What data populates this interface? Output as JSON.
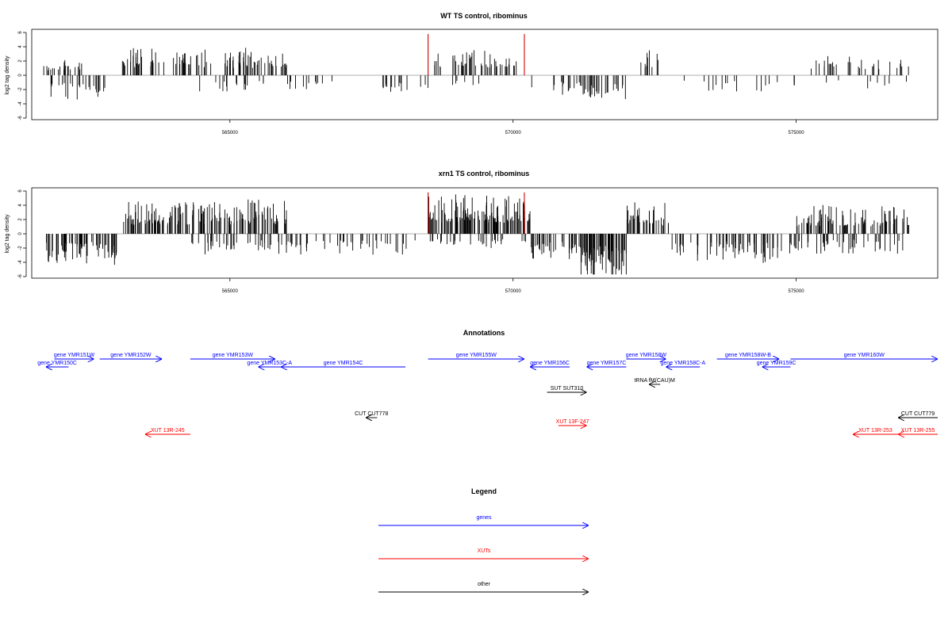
{
  "chart_data": [
    {
      "type": "bar",
      "title": "WT TS control, ribominus",
      "ylabel": "log2 tag density",
      "ylim": [
        -6,
        6
      ],
      "xlim": [
        561500,
        577500
      ],
      "yticks": [
        -6,
        -4,
        -2,
        0,
        2,
        4,
        6
      ],
      "xticks": [
        565000,
        570000,
        575000
      ],
      "series": [
        {
          "color": "#000000",
          "segments": [
            {
              "from": 561700,
              "to": 562400,
              "count": 24,
              "sign": 1,
              "amp": 1.0
            },
            {
              "from": 561800,
              "to": 562800,
              "count": 26,
              "sign": -1,
              "amp": 1.8
            },
            {
              "from": 563100,
              "to": 564700,
              "count": 55,
              "sign": 1,
              "amp": 2.0
            },
            {
              "from": 564400,
              "to": 565600,
              "count": 16,
              "sign": -1,
              "amp": 1.4
            },
            {
              "from": 564900,
              "to": 566000,
              "count": 48,
              "sign": 1,
              "amp": 1.9
            },
            {
              "from": 565700,
              "to": 566900,
              "count": 12,
              "sign": -1,
              "amp": 1.0
            },
            {
              "from": 567700,
              "to": 568500,
              "count": 16,
              "sign": -1,
              "amp": 1.4
            },
            {
              "from": 568600,
              "to": 570100,
              "count": 50,
              "sign": 1,
              "amp": 1.8
            },
            {
              "from": 568900,
              "to": 569400,
              "count": 6,
              "sign": -1,
              "amp": 0.8
            },
            {
              "from": 570300,
              "to": 571200,
              "count": 14,
              "sign": -1,
              "amp": 1.4
            },
            {
              "from": 571200,
              "to": 572000,
              "count": 30,
              "sign": -1,
              "amp": 2.3
            },
            {
              "from": 572200,
              "to": 572700,
              "count": 10,
              "sign": 1,
              "amp": 2.0
            },
            {
              "from": 572700,
              "to": 575000,
              "count": 18,
              "sign": -1,
              "amp": 1.1
            },
            {
              "from": 575100,
              "to": 577000,
              "count": 30,
              "sign": 1,
              "amp": 1.5
            },
            {
              "from": 575500,
              "to": 577000,
              "count": 8,
              "sign": -1,
              "amp": 0.9
            }
          ]
        },
        {
          "color": "#cc0000",
          "bars": [
            {
              "x": 568500,
              "y": 5.8
            },
            {
              "x": 570200,
              "y": 5.8
            }
          ]
        }
      ]
    },
    {
      "type": "bar",
      "title": "xrn1 TS control, ribominus",
      "ylabel": "log2 tag density",
      "ylim": [
        -6,
        6
      ],
      "xlim": [
        561500,
        577500
      ],
      "yticks": [
        -6,
        -4,
        -2,
        0,
        2,
        4,
        6
      ],
      "xticks": [
        565000,
        570000,
        575000
      ],
      "series": [
        {
          "color": "#000000",
          "segments": [
            {
              "from": 561700,
              "to": 563000,
              "count": 70,
              "sign": -1,
              "amp": 2.2
            },
            {
              "from": 563100,
              "to": 564300,
              "count": 70,
              "sign": 1,
              "amp": 2.4
            },
            {
              "from": 564300,
              "to": 566000,
              "count": 90,
              "sign": 1,
              "amp": 2.6
            },
            {
              "from": 564300,
              "to": 566000,
              "count": 40,
              "sign": -1,
              "amp": 1.6
            },
            {
              "from": 566000,
              "to": 568300,
              "count": 45,
              "sign": -1,
              "amp": 1.5
            },
            {
              "from": 568500,
              "to": 570300,
              "count": 130,
              "sign": 1,
              "amp": 2.8
            },
            {
              "from": 568500,
              "to": 570300,
              "count": 30,
              "sign": -1,
              "amp": 1.2
            },
            {
              "from": 570300,
              "to": 571200,
              "count": 40,
              "sign": -1,
              "amp": 2.0
            },
            {
              "from": 571200,
              "to": 572000,
              "count": 80,
              "sign": -1,
              "amp": 3.5
            },
            {
              "from": 572000,
              "to": 572800,
              "count": 40,
              "sign": 1,
              "amp": 2.4
            },
            {
              "from": 572800,
              "to": 575000,
              "count": 70,
              "sign": -1,
              "amp": 2.2
            },
            {
              "from": 575000,
              "to": 577000,
              "count": 90,
              "sign": 1,
              "amp": 2.0
            },
            {
              "from": 575000,
              "to": 577000,
              "count": 40,
              "sign": -1,
              "amp": 1.4
            }
          ]
        },
        {
          "color": "#cc0000",
          "bars": [
            {
              "x": 568500,
              "y": 5.8
            },
            {
              "x": 570200,
              "y": 5.8
            }
          ]
        }
      ]
    }
  ],
  "annotations": {
    "title": "Annotations",
    "features": [
      {
        "label": "gene YMR150C",
        "category": "genes",
        "strand": "-",
        "start": 561750,
        "end": 562150,
        "row": 2
      },
      {
        "label": "gene YMR151W",
        "category": "genes",
        "strand": "+",
        "start": 561900,
        "end": 562600,
        "row": 1
      },
      {
        "label": "gene YMR152W",
        "category": "genes",
        "strand": "+",
        "start": 562700,
        "end": 563800,
        "row": 1
      },
      {
        "label": "gene YMR153W",
        "category": "genes",
        "strand": "+",
        "start": 564300,
        "end": 565800,
        "row": 1
      },
      {
        "label": "gene YMR153C-A",
        "category": "genes",
        "strand": "-",
        "start": 565500,
        "end": 565900,
        "row": 2
      },
      {
        "label": "gene YMR154C",
        "category": "genes",
        "strand": "-",
        "start": 565900,
        "end": 568100,
        "row": 2
      },
      {
        "label": "gene YMR155W",
        "category": "genes",
        "strand": "+",
        "start": 568500,
        "end": 570200,
        "row": 1
      },
      {
        "label": "gene YMR156C",
        "category": "genes",
        "strand": "-",
        "start": 570300,
        "end": 571000,
        "row": 2
      },
      {
        "label": "gene YMR157C",
        "category": "genes",
        "strand": "-",
        "start": 571300,
        "end": 572000,
        "row": 2
      },
      {
        "label": "gene YMR158W",
        "category": "genes",
        "strand": "+",
        "start": 572000,
        "end": 572700,
        "row": 1
      },
      {
        "label": "gene YMR158C-A",
        "category": "genes",
        "strand": "-",
        "start": 572700,
        "end": 573300,
        "row": 2
      },
      {
        "label": "gene YMR158W-B",
        "category": "genes",
        "strand": "+",
        "start": 573600,
        "end": 574700,
        "row": 1
      },
      {
        "label": "gene YMR159C",
        "category": "genes",
        "strand": "-",
        "start": 574400,
        "end": 574900,
        "row": 2
      },
      {
        "label": "gene YMR160W",
        "category": "genes",
        "strand": "+",
        "start": 574900,
        "end": 577500,
        "row": 1
      },
      {
        "label": "SUT SUT310",
        "category": "other",
        "strand": "+",
        "start": 570600,
        "end": 571300,
        "row": 4
      },
      {
        "label": "tRNA fM(CAU)M",
        "category": "other",
        "strand": "-",
        "start": 572400,
        "end": 572600,
        "row": 3
      },
      {
        "label": "CUT CUT778",
        "category": "other",
        "strand": "-",
        "start": 567400,
        "end": 567600,
        "row": 5
      },
      {
        "label": "CUT CUT779",
        "category": "other",
        "strand": "-",
        "start": 576800,
        "end": 577500,
        "row": 5
      },
      {
        "label": "XUT 13R-245",
        "category": "XUTs",
        "strand": "-",
        "start": 563500,
        "end": 564300,
        "row": 7
      },
      {
        "label": "XUT 13F-247",
        "category": "XUTs",
        "strand": "+",
        "start": 570800,
        "end": 571300,
        "row": 6
      },
      {
        "label": "XUT 13R-253",
        "category": "XUTs",
        "strand": "-",
        "start": 576000,
        "end": 576800,
        "row": 7
      },
      {
        "label": "XUT 13R-255",
        "category": "XUTs",
        "strand": "-",
        "start": 576800,
        "end": 577500,
        "row": 7
      }
    ]
  },
  "legend": {
    "title": "Legend",
    "items": [
      {
        "label": "genes",
        "color": "#0000ff"
      },
      {
        "label": "XUTs",
        "color": "#ff0000"
      },
      {
        "label": "other",
        "color": "#000000"
      }
    ]
  }
}
